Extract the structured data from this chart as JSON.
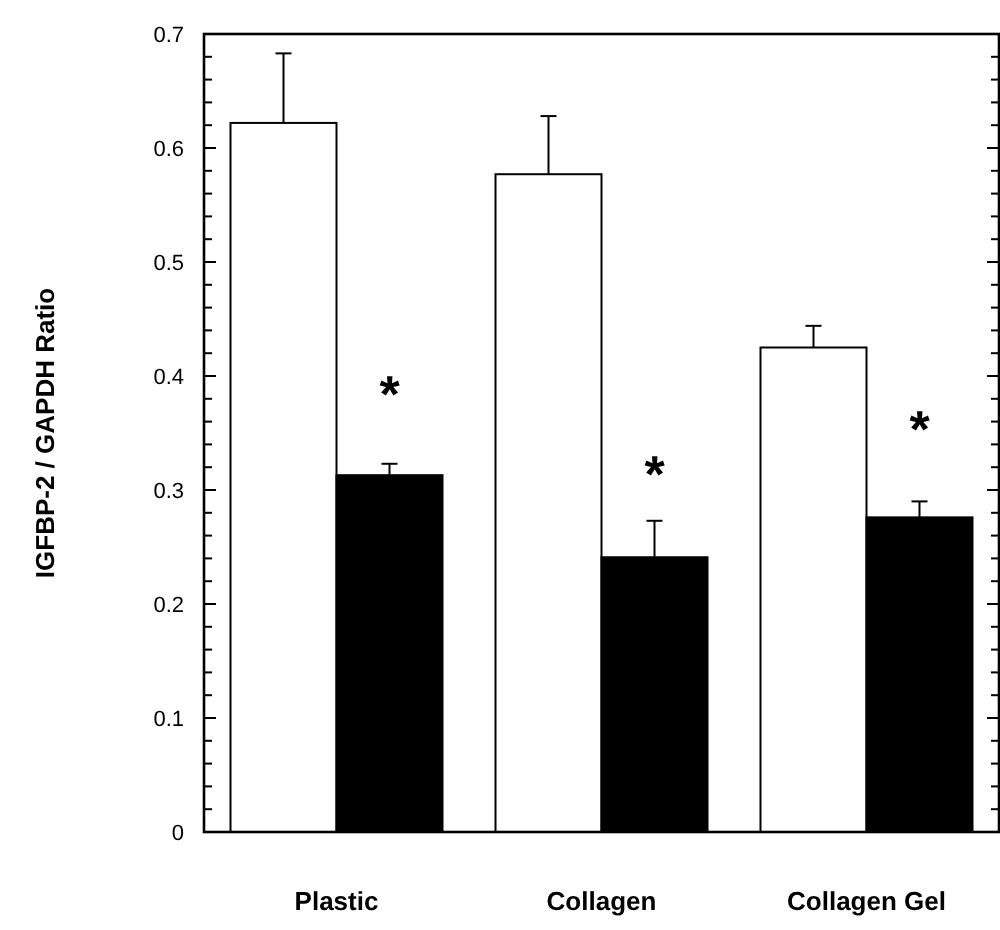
{
  "chart_data": {
    "type": "bar",
    "ylabel": "IGFBP-2 / GAPDH Ratio",
    "categories": [
      "Plastic",
      "Collagen",
      "Collagen Gel"
    ],
    "series": [
      {
        "color": "#ffffff",
        "values": [
          0.622,
          0.577,
          0.425
        ],
        "errors": [
          [
            0.622,
            0.683
          ],
          [
            0.577,
            0.628
          ],
          [
            0.425,
            0.444
          ]
        ]
      },
      {
        "color": "#000000",
        "values": [
          0.313,
          0.241,
          0.276
        ],
        "errors": [
          [
            0.313,
            0.323
          ],
          [
            0.241,
            0.273
          ],
          [
            0.276,
            0.29
          ]
        ]
      }
    ],
    "ylim": [
      0,
      0.7
    ],
    "yticks": [
      0,
      {
        "value": 0.02,
        "label": null
      },
      {
        "value": 0.04,
        "label": null
      },
      {
        "value": 0.06,
        "label": null
      },
      {
        "value": 0.08,
        "label": null
      },
      0.1,
      {
        "value": 0.12,
        "label": null
      },
      {
        "value": 0.14,
        "label": null
      },
      {
        "value": 0.16,
        "label": null
      },
      {
        "value": 0.18,
        "label": null
      },
      0.2,
      {
        "value": 0.22,
        "label": null
      },
      {
        "value": 0.24,
        "label": null
      },
      {
        "value": 0.26,
        "label": null
      },
      {
        "value": 0.28,
        "label": null
      },
      0.3,
      {
        "value": 0.32,
        "label": null
      },
      {
        "value": 0.34,
        "label": null
      },
      {
        "value": 0.36,
        "label": null
      },
      {
        "value": 0.38,
        "label": null
      },
      0.4,
      {
        "value": 0.42,
        "label": null
      },
      {
        "value": 0.44,
        "label": null
      },
      {
        "value": 0.46,
        "label": null
      },
      {
        "value": 0.48,
        "label": null
      },
      0.5,
      {
        "value": 0.52,
        "label": null
      },
      {
        "value": 0.54,
        "label": null
      },
      {
        "value": 0.56,
        "label": null
      },
      {
        "value": 0.58,
        "label": null
      },
      0.6,
      {
        "value": 0.62,
        "label": null
      },
      {
        "value": 0.64,
        "label": null
      },
      {
        "value": 0.66,
        "label": null
      },
      {
        "value": 0.68,
        "label": null
      },
      0.7
    ],
    "annotations": [
      {
        "text": "*",
        "x": "Plastic",
        "y": 0.4
      },
      {
        "text": "*",
        "x": "Collagen",
        "y": 0.33
      },
      {
        "text": "*",
        "x": "Collagen Gel",
        "y": 0.37
      }
    ],
    "grid": false
  }
}
